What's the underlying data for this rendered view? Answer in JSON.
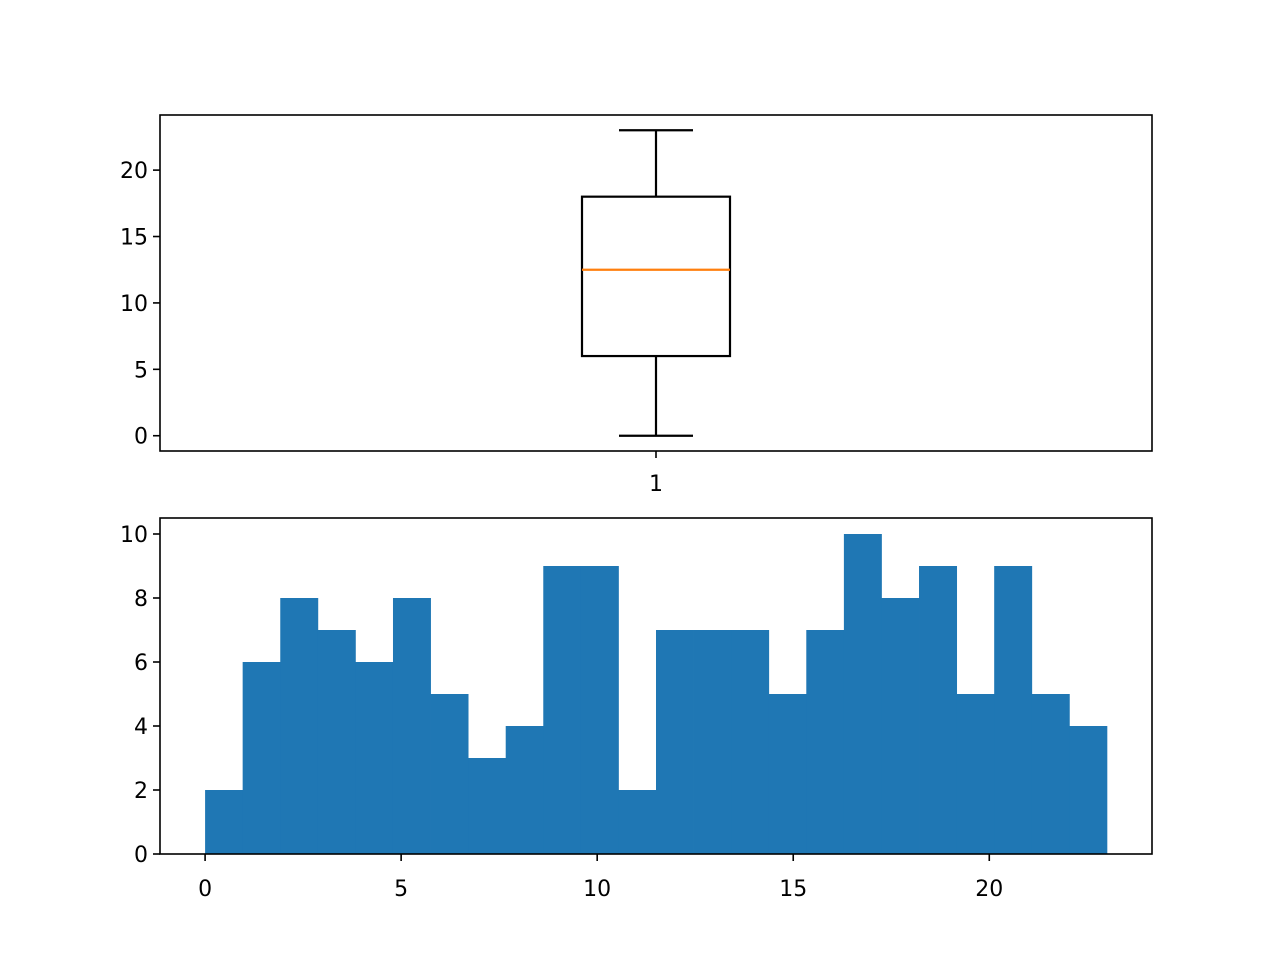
{
  "chart_data": [
    {
      "type": "box",
      "x_tick_labels": [
        "1"
      ],
      "y_ticks": [
        0,
        5,
        10,
        15,
        20
      ],
      "ylim": [
        -1.15,
        24.15
      ],
      "boxes": [
        {
          "whisker_low": 0,
          "q1": 6,
          "median": 12.5,
          "q3": 18,
          "whisker_high": 23
        }
      ],
      "colors": {
        "box": "#000000",
        "median": "#ff7f0e"
      },
      "grid": false
    },
    {
      "type": "bar",
      "subtype": "histogram",
      "bin_edges": [
        0,
        0.958,
        1.917,
        2.875,
        3.833,
        4.792,
        5.75,
        6.708,
        7.667,
        8.625,
        9.583,
        10.542,
        11.5,
        12.458,
        13.417,
        14.375,
        15.333,
        16.292,
        17.25,
        18.208,
        19.167,
        20.125,
        21.083,
        22.042,
        23
      ],
      "values": [
        2,
        6,
        8,
        7,
        6,
        8,
        5,
        3,
        4,
        9,
        9,
        2,
        7,
        7,
        7,
        5,
        7,
        10,
        8,
        9,
        5,
        9,
        5,
        4
      ],
      "x_ticks": [
        0,
        5,
        10,
        15,
        20
      ],
      "y_ticks": [
        0,
        2,
        4,
        6,
        8,
        10
      ],
      "xlim": [
        -1.15,
        24.15
      ],
      "ylim": [
        0,
        10.5
      ],
      "colors": {
        "bar": "#1f77b4"
      },
      "grid": false
    }
  ]
}
